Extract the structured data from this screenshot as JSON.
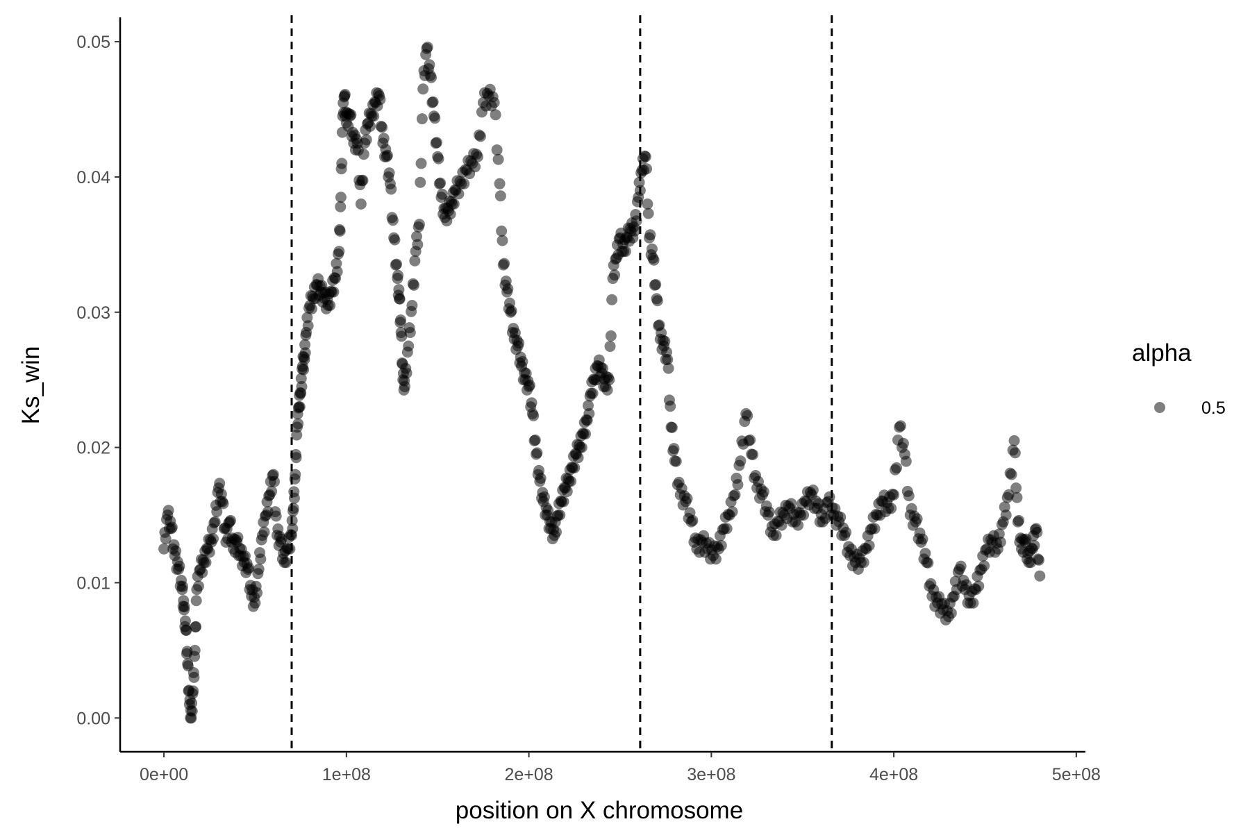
{
  "chart_data": {
    "type": "scatter",
    "xlabel": "position on X chromosome",
    "ylabel": "Ks_win",
    "xlim": [
      -24000000,
      505000000
    ],
    "ylim": [
      -0.0025,
      0.0518
    ],
    "x_ticks": [
      0,
      100000000,
      200000000,
      300000000,
      400000000,
      500000000
    ],
    "x_tick_labels": [
      "0e+00",
      "1e+08",
      "2e+08",
      "3e+08",
      "4e+08",
      "5e+08"
    ],
    "y_ticks": [
      0.0,
      0.01,
      0.02,
      0.03,
      0.04,
      0.05
    ],
    "y_tick_labels": [
      "0.00",
      "0.01",
      "0.02",
      "0.03",
      "0.04",
      "0.05"
    ],
    "vlines": [
      70000000,
      261000000,
      366000000
    ],
    "grid": false,
    "legend": {
      "title": "alpha",
      "label": "0.5",
      "position": "right"
    },
    "point_color": "#000000",
    "point_alpha": 0.5,
    "series": [
      {
        "x": [
          0,
          2000000,
          4000000,
          6000000,
          8000000,
          10000000,
          11000000,
          12000000,
          13000000,
          14000000,
          15000000,
          16000000,
          17000000,
          18000000,
          20000000,
          22000000,
          24000000,
          26000000,
          28000000,
          30000000,
          32000000,
          34000000,
          36000000,
          38000000,
          40000000,
          42000000,
          44000000,
          46000000,
          48000000,
          50000000,
          52000000,
          54000000,
          56000000,
          58000000,
          60000000,
          62000000,
          64000000,
          66000000,
          68000000,
          70000000,
          71000000,
          72000000,
          73000000,
          74000000,
          75000000,
          76000000,
          77000000,
          78000000,
          80000000,
          82000000,
          84000000,
          86000000,
          88000000,
          90000000,
          92000000,
          94000000,
          96000000,
          97000000,
          98000000,
          99000000,
          100000000,
          102000000,
          104000000,
          106000000,
          108000000,
          110000000,
          112000000,
          114000000,
          116000000,
          118000000,
          120000000,
          122000000,
          124000000,
          126000000,
          128000000,
          129000000,
          130000000,
          131000000,
          132000000,
          134000000,
          136000000,
          138000000,
          140000000,
          142000000,
          144000000,
          146000000,
          148000000,
          150000000,
          152000000,
          154000000,
          156000000,
          158000000,
          160000000,
          163000000,
          166000000,
          169000000,
          172000000,
          175000000,
          178000000,
          181000000,
          184000000,
          186000000,
          188000000,
          190000000,
          192000000,
          194000000,
          196000000,
          198000000,
          200000000,
          202000000,
          204000000,
          206000000,
          208000000,
          210000000,
          212000000,
          214000000,
          216000000,
          218000000,
          220000000,
          222000000,
          224000000,
          226000000,
          228000000,
          230000000,
          232000000,
          234000000,
          236000000,
          238000000,
          240000000,
          242000000,
          244000000,
          246000000,
          248000000,
          250000000,
          252000000,
          254000000,
          256000000,
          258000000,
          260000000,
          262000000,
          264000000,
          266000000,
          268000000,
          270000000,
          272000000,
          274000000,
          276000000,
          278000000,
          280000000,
          283000000,
          286000000,
          289000000,
          292000000,
          295000000,
          298000000,
          301000000,
          304000000,
          307000000,
          310000000,
          313000000,
          316000000,
          319000000,
          322000000,
          325000000,
          328000000,
          331000000,
          334000000,
          337000000,
          340000000,
          343000000,
          346000000,
          349000000,
          352000000,
          355000000,
          358000000,
          361000000,
          364000000,
          367000000,
          370000000,
          373000000,
          376000000,
          379000000,
          382000000,
          385000000,
          388000000,
          391000000,
          394000000,
          397000000,
          400000000,
          403000000,
          406000000,
          409000000,
          412000000,
          415000000,
          418000000,
          421000000,
          424000000,
          427000000,
          430000000,
          433000000,
          436000000,
          439000000,
          442000000,
          445000000,
          448000000,
          451000000,
          454000000,
          457000000,
          460000000,
          463000000,
          466000000,
          468000000,
          470000000,
          472000000,
          474000000,
          476000000,
          478000000,
          480000000
        ],
        "y": [
          0.0125,
          0.015,
          0.014,
          0.012,
          0.011,
          0.0095,
          0.008,
          0.0065,
          0.004,
          0.001,
          0.0,
          0.002,
          0.005,
          0.0095,
          0.011,
          0.0115,
          0.0125,
          0.013,
          0.0145,
          0.017,
          0.016,
          0.013,
          0.0145,
          0.0125,
          0.013,
          0.012,
          0.0115,
          0.011,
          0.009,
          0.0085,
          0.011,
          0.0135,
          0.015,
          0.0165,
          0.018,
          0.0135,
          0.013,
          0.0115,
          0.0125,
          0.0135,
          0.0155,
          0.018,
          0.0215,
          0.023,
          0.024,
          0.026,
          0.0265,
          0.0285,
          0.0305,
          0.031,
          0.032,
          0.0315,
          0.031,
          0.0305,
          0.0315,
          0.0325,
          0.0345,
          0.0385,
          0.0445,
          0.046,
          0.044,
          0.0445,
          0.0425,
          0.0425,
          0.038,
          0.0425,
          0.044,
          0.0445,
          0.0455,
          0.046,
          0.0425,
          0.0415,
          0.0395,
          0.0355,
          0.0325,
          0.031,
          0.0285,
          0.025,
          0.0245,
          0.0275,
          0.0305,
          0.0345,
          0.0365,
          0.0465,
          0.0495,
          0.0475,
          0.0445,
          0.0415,
          0.0385,
          0.037,
          0.0375,
          0.038,
          0.039,
          0.0395,
          0.0405,
          0.041,
          0.0415,
          0.0455,
          0.046,
          0.0455,
          0.0395,
          0.0335,
          0.0315,
          0.03,
          0.028,
          0.0275,
          0.026,
          0.025,
          0.0245,
          0.0225,
          0.0195,
          0.0175,
          0.016,
          0.015,
          0.014,
          0.0135,
          0.015,
          0.016,
          0.017,
          0.0175,
          0.0185,
          0.0195,
          0.02,
          0.021,
          0.022,
          0.024,
          0.025,
          0.026,
          0.0255,
          0.0245,
          0.025,
          0.0325,
          0.034,
          0.0355,
          0.0345,
          0.0355,
          0.036,
          0.036,
          0.0385,
          0.0405,
          0.0415,
          0.0355,
          0.034,
          0.031,
          0.028,
          0.0275,
          0.0265,
          0.0215,
          0.019,
          0.0165,
          0.016,
          0.0145,
          0.0125,
          0.013,
          0.0125,
          0.012,
          0.0125,
          0.014,
          0.015,
          0.0165,
          0.019,
          0.0225,
          0.0195,
          0.017,
          0.0165,
          0.015,
          0.0135,
          0.0145,
          0.015,
          0.0155,
          0.0145,
          0.015,
          0.016,
          0.0165,
          0.0155,
          0.0145,
          0.016,
          0.015,
          0.0145,
          0.0135,
          0.012,
          0.0115,
          0.0115,
          0.0125,
          0.014,
          0.015,
          0.016,
          0.0155,
          0.0165,
          0.0215,
          0.0195,
          0.015,
          0.0145,
          0.013,
          0.0115,
          0.009,
          0.0085,
          0.008,
          0.0075,
          0.009,
          0.011,
          0.0095,
          0.0085,
          0.0095,
          0.011,
          0.0125,
          0.013,
          0.0125,
          0.0145,
          0.0165,
          0.0205,
          0.0145,
          0.0125,
          0.013,
          0.0115,
          0.0125,
          0.014,
          0.0105
        ]
      }
    ]
  }
}
